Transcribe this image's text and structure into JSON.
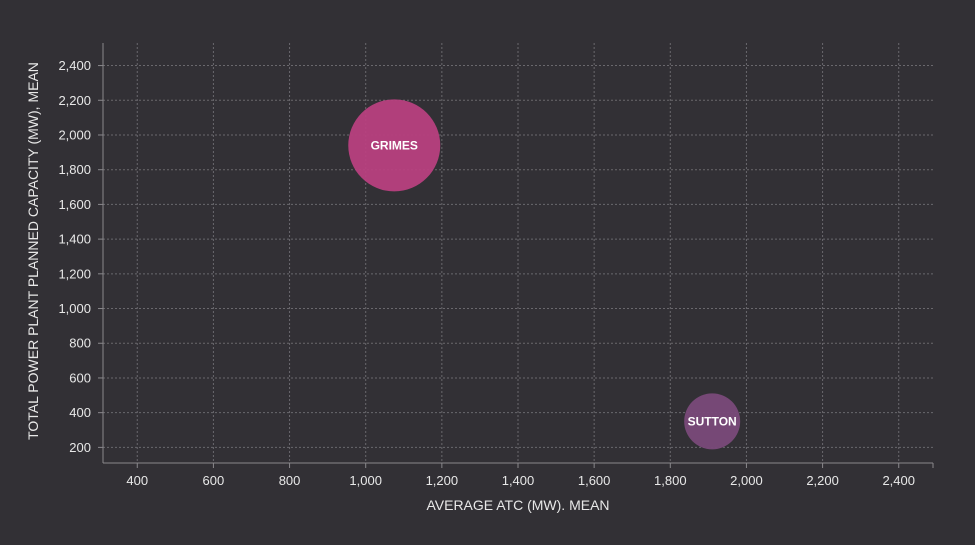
{
  "chart_data": {
    "type": "scatter",
    "subtype": "bubble",
    "title": "",
    "xlabel": "AVERAGE ATC (MW). MEAN",
    "ylabel": "TOTAL POWER PLANT PLANNED CAPACITY (MW), MEAN",
    "xlim": [
      310,
      2490
    ],
    "ylim": [
      110,
      2530
    ],
    "x_ticks": [
      400,
      600,
      800,
      1000,
      1200,
      1400,
      1600,
      1800,
      2000,
      2200,
      2400
    ],
    "x_tick_labels": [
      "400",
      "600",
      "800",
      "1,000",
      "1,200",
      "1,400",
      "1,600",
      "1,800",
      "2,000",
      "2,200",
      "2,400"
    ],
    "y_ticks": [
      200,
      400,
      600,
      800,
      1000,
      1200,
      1400,
      1600,
      1800,
      2000,
      2200,
      2400
    ],
    "y_tick_labels": [
      "200",
      "400",
      "600",
      "800",
      "1,000",
      "1,200",
      "1,400",
      "1,600",
      "1,800",
      "2,000",
      "2,200",
      "2,400"
    ],
    "grid": true,
    "points": [
      {
        "label": "GRIMES",
        "x": 1075,
        "y": 1940,
        "color": "#b8407f"
      },
      {
        "label": "SUTTON",
        "x": 1910,
        "y": 350,
        "color": "#7a4a7a"
      }
    ],
    "colors": {
      "background": "#323035",
      "text": "#e8e8e8",
      "grid": "#6a686d"
    }
  }
}
